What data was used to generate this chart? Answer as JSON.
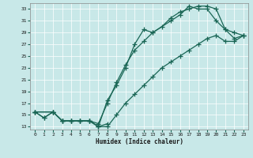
{
  "xlabel": "Humidex (Indice chaleur)",
  "background_color": "#c8e8e8",
  "grid_color": "#ffffff",
  "line_color": "#1a6655",
  "xlim": [
    -0.5,
    23.5
  ],
  "ylim": [
    12.5,
    34
  ],
  "yticks": [
    13,
    15,
    17,
    19,
    21,
    23,
    25,
    27,
    29,
    31,
    33
  ],
  "xticks": [
    0,
    1,
    2,
    3,
    4,
    5,
    6,
    7,
    8,
    9,
    10,
    11,
    12,
    13,
    14,
    15,
    16,
    17,
    18,
    19,
    20,
    21,
    22,
    23
  ],
  "line1_x": [
    0,
    1,
    2,
    3,
    4,
    5,
    6,
    7,
    8,
    9,
    10,
    11,
    12,
    13,
    15,
    16,
    17,
    18,
    19,
    20,
    21,
    22,
    23
  ],
  "line1_y": [
    15.5,
    14.5,
    15.5,
    14.0,
    14.0,
    14.0,
    14.0,
    13.0,
    17.5,
    20.0,
    23.0,
    27.0,
    29.5,
    29.0,
    31.0,
    32.0,
    33.5,
    33.0,
    33.0,
    31.0,
    29.5,
    29.0,
    28.5
  ],
  "line2_x": [
    0,
    1,
    2,
    3,
    4,
    5,
    6,
    7,
    8
  ],
  "line2_y": [
    15.5,
    14.5,
    15.5,
    14.0,
    14.0,
    14.0,
    14.0,
    13.0,
    13.5
  ],
  "line3_x": [
    0,
    2,
    3,
    4,
    5,
    6,
    7,
    8,
    9,
    10,
    11,
    12,
    13,
    14,
    15,
    16,
    17,
    18,
    19,
    20,
    21,
    22,
    23
  ],
  "line3_y": [
    15.5,
    15.5,
    14.0,
    14.0,
    14.0,
    14.0,
    13.5,
    17.0,
    20.5,
    23.5,
    26.0,
    27.5,
    29.0,
    30.0,
    31.5,
    32.5,
    33.0,
    33.5,
    33.5,
    33.0,
    29.5,
    28.0,
    28.5
  ],
  "line4_x": [
    0,
    2,
    3,
    4,
    5,
    6,
    7,
    8,
    9,
    10,
    11,
    12,
    13,
    14,
    15,
    16,
    17,
    18,
    19,
    20,
    21,
    22,
    23
  ],
  "line4_y": [
    15.5,
    15.5,
    14.0,
    14.0,
    14.0,
    14.0,
    13.0,
    13.0,
    15.0,
    17.0,
    18.5,
    20.0,
    21.5,
    23.0,
    24.0,
    25.0,
    26.0,
    27.0,
    28.0,
    28.5,
    27.5,
    27.5,
    28.5
  ]
}
